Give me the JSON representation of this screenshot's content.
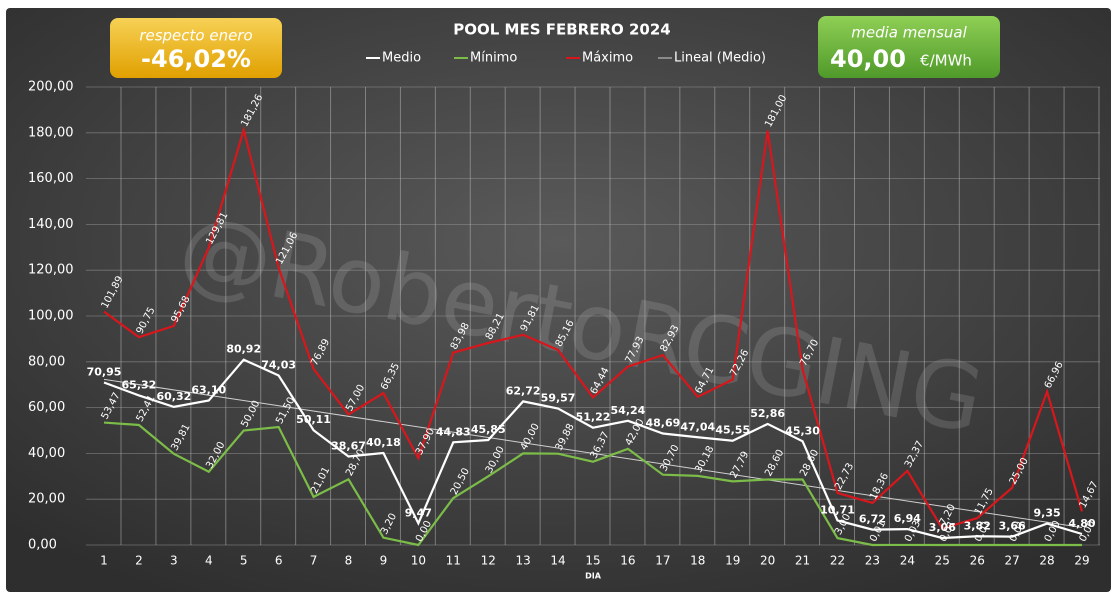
{
  "chart_data": {
    "type": "line",
    "title": "POOL  MES FEBRERO 2024",
    "x_label": "DIA",
    "watermark": "@RobertoRCGING",
    "badges": [
      {
        "caption": "respecto enero",
        "value": "-46,02%"
      },
      {
        "caption": "media mensual",
        "value": "40,00",
        "unit": "€/MWh"
      }
    ],
    "categories": [
      "1",
      "2",
      "3",
      "4",
      "5",
      "6",
      "7",
      "8",
      "9",
      "10",
      "11",
      "12",
      "13",
      "14",
      "15",
      "16",
      "17",
      "18",
      "19",
      "20",
      "21",
      "22",
      "23",
      "24",
      "25",
      "26",
      "27",
      "28",
      "29"
    ],
    "series": [
      {
        "name": "Medio",
        "color": "#ffffff",
        "values": [
          70.95,
          65.32,
          60.32,
          63.1,
          80.92,
          74.03,
          50.11,
          38.67,
          40.18,
          9.47,
          44.83,
          45.85,
          62.72,
          59.57,
          51.22,
          54.24,
          48.69,
          47.04,
          45.55,
          52.86,
          45.3,
          10.71,
          6.72,
          6.94,
          3.06,
          3.82,
          3.66,
          9.35,
          4.8
        ],
        "value_labels": [
          "70,95",
          "65,32",
          "60,32",
          "63,10",
          "80,92",
          "74,03",
          "50,11",
          "38,67",
          "40,18",
          "9,47",
          "44,83",
          "45,85",
          "62,72",
          "59,57",
          "51,22",
          "54,24",
          "48,69",
          "47,04",
          "45,55",
          "52,86",
          "45,30",
          "10,71",
          "6,72",
          "6,94",
          "3,06",
          "3,82",
          "3,66",
          "9,35",
          "4,80"
        ]
      },
      {
        "name": "Mínimo",
        "color": "#7cbc48",
        "values": [
          53.47,
          52.41,
          39.81,
          32.0,
          50.0,
          51.5,
          21.01,
          28.7,
          3.2,
          0.0,
          20.5,
          30.0,
          40.0,
          39.88,
          36.37,
          42.0,
          30.7,
          30.18,
          27.79,
          28.6,
          28.6,
          3.0,
          0.01,
          0.03,
          0.01,
          0.01,
          0.01,
          0.0,
          0.0
        ],
        "value_labels": [
          "53,47",
          "52,41",
          "39,81",
          "32,00",
          "50,00",
          "51,50",
          "21,01",
          "28,70",
          "3,20",
          "0,00",
          "20,50",
          "30,00",
          "40,00",
          "39,88",
          "36,37",
          "42,00",
          "30,70",
          "30,18",
          "27,79",
          "28,60",
          "28,60",
          "3,00",
          "0,01",
          "0,03",
          "0,01",
          "0,01",
          "0,01",
          "0,00",
          "0,00"
        ]
      },
      {
        "name": "Máximo",
        "color": "#d9161b",
        "values": [
          101.89,
          90.75,
          95.68,
          129.81,
          181.26,
          121.06,
          76.89,
          57.0,
          66.35,
          37.9,
          83.98,
          88.21,
          91.81,
          85.16,
          64.44,
          77.93,
          82.93,
          64.71,
          72.26,
          181.0,
          76.7,
          22.73,
          18.36,
          32.37,
          7.2,
          11.75,
          25.0,
          66.96,
          14.67
        ],
        "value_labels": [
          "101,89",
          "90,75",
          "95,68",
          "129,81",
          "181,26",
          "121,06",
          "76,89",
          "57,00",
          "66,35",
          "37,90",
          "83,98",
          "88,21",
          "91,81",
          "85,16",
          "64,44",
          "77,93",
          "82,93",
          "64,71",
          "72,26",
          "181,00",
          "76,70",
          "22,73",
          "18,36",
          "32,37",
          "7,20",
          "11,75",
          "25,00",
          "66,96",
          "14,67"
        ]
      }
    ],
    "trendline": {
      "name": "Lineal (Medio)",
      "color": "#d0d0d0"
    },
    "ylim": [
      0,
      200
    ],
    "yticks": [
      {
        "value": 0,
        "label": "0,00"
      },
      {
        "value": 20,
        "label": "20,00"
      },
      {
        "value": 40,
        "label": "40,00"
      },
      {
        "value": 60,
        "label": "60,00"
      },
      {
        "value": 80,
        "label": "80,00"
      },
      {
        "value": 100,
        "label": "100,00"
      },
      {
        "value": 120,
        "label": "120,00"
      },
      {
        "value": 140,
        "label": "140,00"
      },
      {
        "value": 160,
        "label": "160,00"
      },
      {
        "value": 180,
        "label": "180,00"
      },
      {
        "value": 200,
        "label": "200,00"
      }
    ],
    "grid": true
  }
}
